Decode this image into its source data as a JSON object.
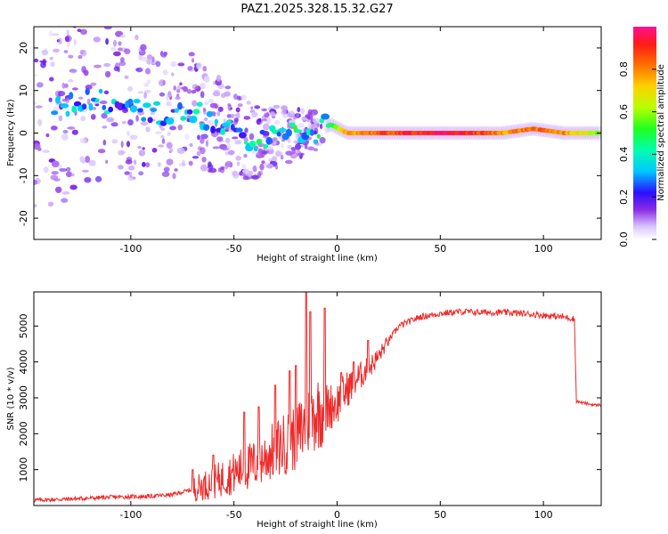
{
  "title": "PAZ1.2025.328.15.32.G27",
  "colors": {
    "spectrogram_ridge_high": "#ff2020",
    "snr_line": "#ee2a2a",
    "axis": "#000000"
  },
  "chart_data": [
    {
      "type": "heatmap",
      "name": "spectrogram",
      "xlabel": "Height of straight line (km)",
      "ylabel": "Frequency (Hz)",
      "xlim": [
        -147,
        128
      ],
      "ylim": [
        -25,
        25
      ],
      "x_ticks": [
        -100,
        -50,
        0,
        50,
        100
      ],
      "y_ticks": [
        -20,
        -10,
        0,
        10,
        20
      ],
      "colorbar": {
        "label": "Normalized spectral amplitude",
        "range": [
          0,
          1
        ],
        "ticks": [
          0.0,
          0.2,
          0.4,
          0.6,
          0.8
        ]
      },
      "ridge": [
        {
          "x": -132,
          "f": 6,
          "amp": 0.25
        },
        {
          "x": -125,
          "f": 8,
          "amp": 0.3
        },
        {
          "x": -118,
          "f": 8,
          "amp": 0.3
        },
        {
          "x": -110,
          "f": 7,
          "amp": 0.3
        },
        {
          "x": -100,
          "f": 6.5,
          "amp": 0.25
        },
        {
          "x": -90,
          "f": 5,
          "amp": 0.28
        },
        {
          "x": -80,
          "f": 4,
          "amp": 0.25
        },
        {
          "x": -72,
          "f": 6,
          "amp": 0.3
        },
        {
          "x": -65,
          "f": 4,
          "amp": 0.32
        },
        {
          "x": -55,
          "f": 1,
          "amp": 0.3
        },
        {
          "x": -45,
          "f": -1,
          "amp": 0.32
        },
        {
          "x": -38,
          "f": -2,
          "amp": 0.35
        },
        {
          "x": -30,
          "f": -1,
          "amp": 0.35
        },
        {
          "x": -20,
          "f": 0,
          "amp": 0.38
        },
        {
          "x": -10,
          "f": 0.5,
          "amp": 0.4
        },
        {
          "x": -3,
          "f": 2,
          "amp": 0.45
        },
        {
          "x": 5,
          "f": 0,
          "amp": 0.8
        },
        {
          "x": 20,
          "f": 0,
          "amp": 0.85
        },
        {
          "x": 40,
          "f": 0,
          "amp": 0.95
        },
        {
          "x": 60,
          "f": 0,
          "amp": 0.97
        },
        {
          "x": 80,
          "f": 0,
          "amp": 0.8
        },
        {
          "x": 95,
          "f": 1,
          "amp": 0.85
        },
        {
          "x": 110,
          "f": 0,
          "amp": 0.8
        },
        {
          "x": 127,
          "f": 0,
          "amp": 0.6
        }
      ]
    },
    {
      "type": "line",
      "name": "snr",
      "xlabel": "Height of straight line (km)",
      "ylabel": "SNR (10 * v/v)",
      "xlim": [
        -147,
        128
      ],
      "ylim": [
        0,
        5950
      ],
      "x_ticks": [
        -100,
        -50,
        0,
        50,
        100
      ],
      "y_ticks": [
        1000,
        2000,
        3000,
        4000,
        5000
      ],
      "series": [
        {
          "name": "SNR",
          "x": [
            -147,
            -130,
            -110,
            -90,
            -80,
            -70,
            -60,
            -50,
            -40,
            -30,
            -20,
            -10,
            0,
            5,
            10,
            15,
            20,
            25,
            30,
            40,
            50,
            60,
            70,
            80,
            90,
            100,
            110,
            115,
            116,
            120,
            125,
            128
          ],
          "y": [
            150,
            180,
            230,
            260,
            300,
            450,
            650,
            900,
            1150,
            1550,
            1900,
            2600,
            2850,
            3250,
            3550,
            3800,
            4150,
            4600,
            5000,
            5250,
            5350,
            5400,
            5380,
            5380,
            5350,
            5300,
            5250,
            5200,
            2900,
            2850,
            2800,
            2800
          ]
        }
      ],
      "spikes": [
        {
          "x": -70,
          "y": 1000
        },
        {
          "x": -60,
          "y": 1400
        },
        {
          "x": -45,
          "y": 2600
        },
        {
          "x": -38,
          "y": 2750
        },
        {
          "x": -30,
          "y": 3350
        },
        {
          "x": -23,
          "y": 3750
        },
        {
          "x": -20,
          "y": 3900
        },
        {
          "x": -15,
          "y": 5950
        },
        {
          "x": -13,
          "y": 5400
        },
        {
          "x": -6,
          "y": 5500
        },
        {
          "x": 2,
          "y": 3700
        },
        {
          "x": 8,
          "y": 4000
        },
        {
          "x": 15,
          "y": 4600
        }
      ]
    }
  ]
}
